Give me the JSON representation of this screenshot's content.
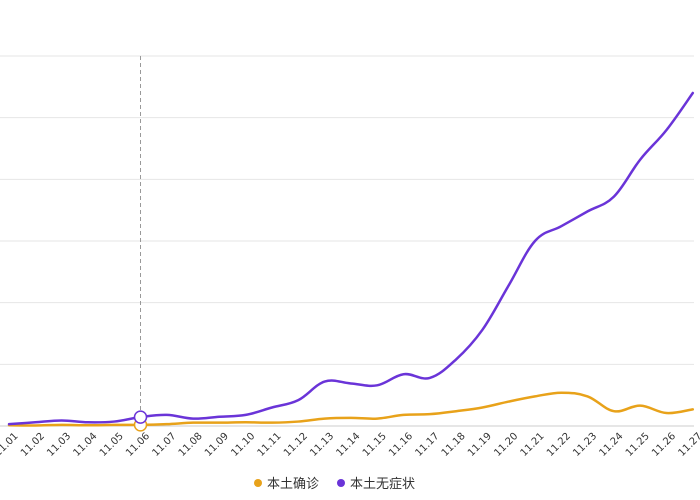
{
  "chart_data": {
    "type": "line",
    "categories": [
      "11.01",
      "11.02",
      "11.03",
      "11.04",
      "11.05",
      "11.06",
      "11.07",
      "11.08",
      "11.09",
      "11.10",
      "11.11",
      "11.12",
      "11.13",
      "11.14",
      "11.15",
      "11.16",
      "11.17",
      "11.18",
      "11.19",
      "11.20",
      "11.21",
      "11.22",
      "11.23",
      "11.24",
      "11.25",
      "11.26",
      "11.27"
    ],
    "series": [
      {
        "name": "本土确诊",
        "color": "#e8a21a",
        "values": [
          20,
          15,
          30,
          20,
          30,
          30,
          50,
          90,
          90,
          100,
          90,
          120,
          200,
          220,
          200,
          300,
          320,
          400,
          500,
          660,
          800,
          900,
          800,
          400,
          550,
          350,
          450
        ]
      },
      {
        "name": "本土无症状",
        "color": "#6a34d8",
        "values": [
          50,
          100,
          150,
          100,
          120,
          240,
          300,
          200,
          250,
          300,
          500,
          700,
          1200,
          1150,
          1100,
          1400,
          1300,
          1800,
          2600,
          3800,
          5000,
          5400,
          5800,
          6200,
          7200,
          8000,
          9000
        ]
      }
    ],
    "highlight_category": "11.06",
    "ylim": [
      0,
      10000
    ],
    "grid": true,
    "legend_position": "bottom-center"
  }
}
